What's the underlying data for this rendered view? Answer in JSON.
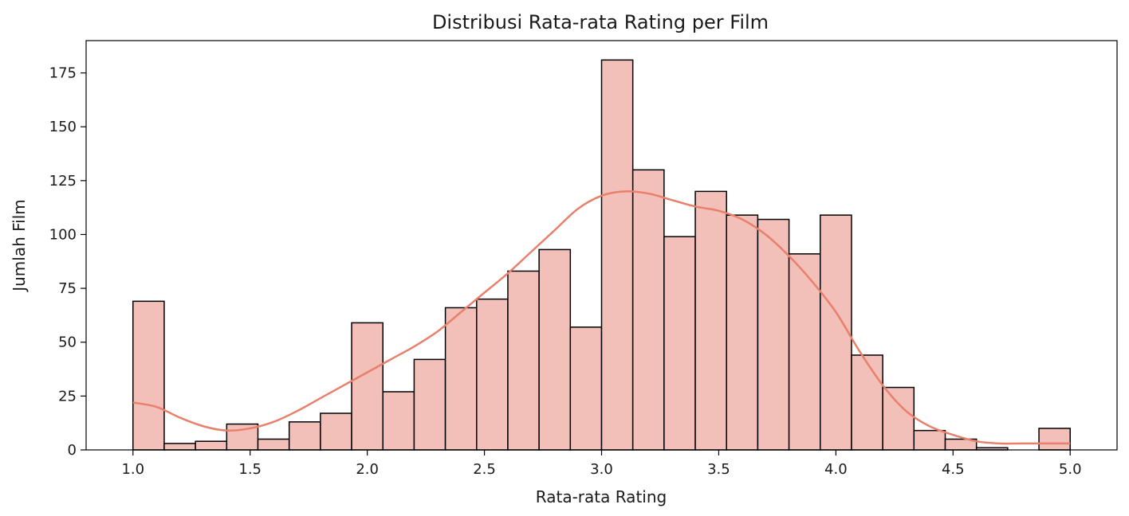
{
  "chart_data": {
    "type": "bar",
    "title": "Distribusi Rata-rata Rating per Film",
    "xlabel": "Rata-rata Rating",
    "ylabel": "Jumlah Film",
    "xlim": [
      0.8,
      5.2
    ],
    "ylim": [
      0,
      190
    ],
    "xticks": [
      "1.0",
      "1.5",
      "2.0",
      "2.5",
      "3.0",
      "3.5",
      "4.0",
      "4.5",
      "5.0"
    ],
    "yticks": [
      "0",
      "25",
      "50",
      "75",
      "100",
      "125",
      "150",
      "175"
    ],
    "bin_edges": [
      1.0,
      1.1333,
      1.2667,
      1.4,
      1.5333,
      1.6667,
      1.8,
      1.9333,
      2.0667,
      2.2,
      2.3333,
      2.4667,
      2.6,
      2.7333,
      2.8667,
      3.0,
      3.1333,
      3.2667,
      3.4,
      3.5333,
      3.6667,
      3.8,
      3.9333,
      4.0667,
      4.2,
      4.3333,
      4.4667,
      4.6,
      4.7333,
      4.8667,
      5.0
    ],
    "values": [
      69,
      3,
      4,
      12,
      5,
      13,
      17,
      59,
      27,
      42,
      66,
      70,
      83,
      93,
      57,
      181,
      130,
      99,
      120,
      109,
      107,
      91,
      109,
      44,
      29,
      9,
      5,
      1,
      0,
      10
    ],
    "kde": {
      "x": [
        1.0,
        1.1,
        1.2,
        1.3,
        1.4,
        1.5,
        1.6,
        1.7,
        1.8,
        1.9,
        2.0,
        2.1,
        2.2,
        2.3,
        2.4,
        2.5,
        2.6,
        2.7,
        2.8,
        2.9,
        3.0,
        3.1,
        3.2,
        3.3,
        3.4,
        3.5,
        3.6,
        3.7,
        3.8,
        3.9,
        4.0,
        4.1,
        4.2,
        4.3,
        4.4,
        4.5,
        4.6,
        4.7,
        4.8,
        4.9,
        5.0
      ],
      "y": [
        22,
        20,
        15,
        11,
        9,
        10,
        13,
        18,
        24,
        30,
        36,
        42,
        48,
        55,
        64,
        73,
        82,
        92,
        102,
        112,
        118,
        120,
        119,
        116,
        113,
        111,
        107,
        100,
        90,
        78,
        64,
        46,
        30,
        18,
        11,
        7,
        4,
        3,
        3,
        3,
        3
      ]
    },
    "colors": {
      "bar_fill": "#f2bfb9",
      "bar_edge": "#000000",
      "kde_line": "#e8806c"
    },
    "grid": false,
    "legend": "none"
  }
}
